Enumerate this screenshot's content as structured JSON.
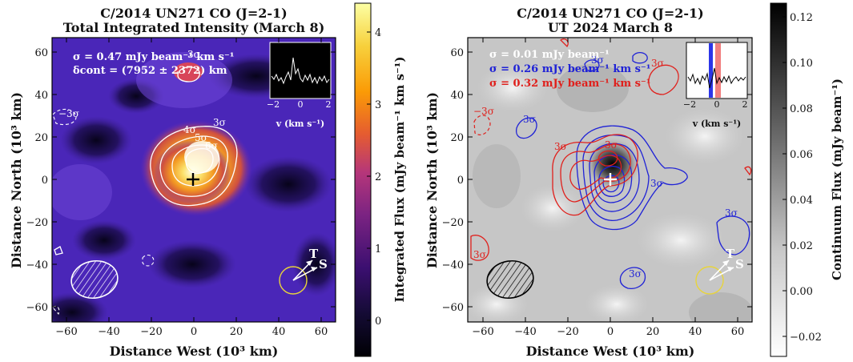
{
  "chart_data": [
    {
      "type": "heatmap",
      "title": "C/2014 UN271 CO (J=2-1)",
      "subtitle": "Total Integrated Intensity (March 8)",
      "xlabel": "Distance West (10³ km)",
      "ylabel": "Distance North (10³ km)",
      "xlim": [
        -67,
        67
      ],
      "ylim": [
        -67,
        67
      ],
      "xticks": [
        -60,
        -40,
        -20,
        0,
        20,
        40,
        60
      ],
      "yticks": [
        -60,
        -40,
        -20,
        0,
        20,
        40,
        60
      ],
      "xtick_labels": [
        "−60",
        "−40",
        "−20",
        "0",
        "20",
        "40",
        "60"
      ],
      "ytick_labels": [
        "−60",
        "−40",
        "−20",
        "0",
        "20",
        "40",
        "60"
      ],
      "colormap": "inferno-like (black → purple → orange → yellow → white)",
      "colorbar": {
        "label": "Integrated Flux (mJy beam⁻¹ km s⁻¹)",
        "range": [
          -0.6,
          4.3
        ],
        "ticks": [
          0,
          1,
          2,
          3,
          4
        ],
        "tick_labels": [
          "0",
          "1",
          "2",
          "3",
          "4"
        ]
      },
      "annotations": [
        {
          "text": "σ = 0.47 mJy beam⁻¹ km s⁻¹",
          "color": "#ffffff"
        },
        {
          "text": "δcont = (7952 ± 2372) km",
          "color": "#ffffff"
        }
      ],
      "contour_labels": [
        "3σ",
        "4σ",
        "5σ",
        "6σ",
        "−3σ"
      ],
      "peak_marker": {
        "x": 0,
        "y": 0,
        "symbol": "+"
      },
      "emission_peak": {
        "x": 3,
        "y": 9,
        "value": 4.2
      },
      "beam_ellipse": {
        "x": -48,
        "y": -46
      },
      "vector_label": {
        "text": "T S",
        "x": 47,
        "y": -47
      },
      "inset_spectrum": {
        "xlabel": "v (km s⁻¹)",
        "xticks": [
          -2,
          0,
          2
        ],
        "xtick_labels": [
          "−2",
          "0",
          "2"
        ]
      }
    },
    {
      "type": "heatmap",
      "title": "C/2014 UN271 CO (J=2-1)",
      "subtitle": "UT 2024 March 8",
      "xlabel": "Distance West (10³ km)",
      "ylabel": "Distance North (10³ km)",
      "xlim": [
        -67,
        67
      ],
      "ylim": [
        -67,
        67
      ],
      "xticks": [
        -60,
        -40,
        -20,
        0,
        20,
        40,
        60
      ],
      "yticks": [
        -60,
        -40,
        -20,
        0,
        20,
        40,
        60
      ],
      "xtick_labels": [
        "−60",
        "−40",
        "−20",
        "0",
        "20",
        "40",
        "60"
      ],
      "ytick_labels": [
        "−60",
        "−40",
        "−20",
        "0",
        "20",
        "40",
        "60"
      ],
      "colormap": "reversed greys",
      "colorbar": {
        "label": "Continuum Flux (mJy beam⁻¹)",
        "range": [
          -0.027,
          0.127
        ],
        "ticks": [
          -0.02,
          0.0,
          0.02,
          0.04,
          0.06,
          0.08,
          0.1,
          0.12
        ],
        "tick_labels": [
          "−0.02",
          "0.00",
          "0.02",
          "0.04",
          "0.06",
          "0.08",
          "0.10",
          "0.12"
        ]
      },
      "legend": [
        {
          "text": "σ = 0.01 mJy beam⁻¹",
          "color": "#ffffff"
        },
        {
          "text": "σ = 0.26 mJy beam⁻¹ km s⁻¹",
          "color": "#1f22d6"
        },
        {
          "text": "σ = 0.32 mJy beam⁻¹ km s⁻¹",
          "color": "#e0201c"
        }
      ],
      "contour_labels": [
        "3σ",
        "−3σ"
      ],
      "peak_marker": {
        "x": 0,
        "y": 0,
        "symbol": "+"
      },
      "continuum_peak": {
        "x": 0,
        "y": 4,
        "value": 0.125
      },
      "blue_emission_peak": {
        "x": -2,
        "y": -3
      },
      "red_emission_peak": {
        "x": 2,
        "y": 12
      },
      "beam_ellipse": {
        "x": -48,
        "y": -46
      },
      "vector_label": {
        "text": "T S",
        "x": 47,
        "y": -47
      },
      "inset_spectrum": {
        "xlabel": "v (km s⁻¹)",
        "xticks": [
          -2,
          0,
          2
        ],
        "xtick_labels": [
          "−2",
          "0",
          "2"
        ],
        "blue_band": [
          -0.5,
          -0.2
        ],
        "red_band": [
          0.2,
          0.6
        ]
      }
    }
  ]
}
